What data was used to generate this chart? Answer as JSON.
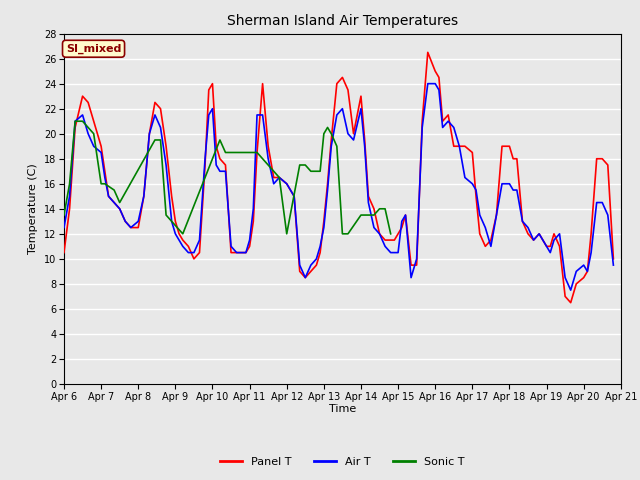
{
  "title": "Sherman Island Air Temperatures",
  "xlabel": "Time",
  "ylabel": "Temperature (C)",
  "annotation_text": "SI_mixed",
  "annotation_color": "#8B0000",
  "annotation_bg": "#FFFACD",
  "xlim": [
    6,
    21
  ],
  "ylim": [
    0,
    28
  ],
  "yticks": [
    0,
    2,
    4,
    6,
    8,
    10,
    12,
    14,
    16,
    18,
    20,
    22,
    24,
    26,
    28
  ],
  "xtick_labels": [
    "Apr 6",
    "Apr 7",
    "Apr 8",
    "Apr 9",
    "Apr 10",
    "Apr 11",
    "Apr 12",
    "Apr 13",
    "Apr 14",
    "Apr 15",
    "Apr 16",
    "Apr 17",
    "Apr 18",
    "Apr 19",
    "Apr 20",
    "Apr 21"
  ],
  "fig_bg_color": "#E8E8E8",
  "plot_bg_color": "#E8E8E8",
  "grid_color": "white",
  "panel_T_color": "red",
  "air_T_color": "blue",
  "sonic_T_color": "green",
  "line_width": 1.2,
  "panel_T_x": [
    6.0,
    6.15,
    6.3,
    6.5,
    6.65,
    6.8,
    7.0,
    7.1,
    7.2,
    7.35,
    7.5,
    7.65,
    7.8,
    8.0,
    8.15,
    8.3,
    8.45,
    8.6,
    8.75,
    8.9,
    9.0,
    9.1,
    9.2,
    9.35,
    9.5,
    9.65,
    9.8,
    9.9,
    10.0,
    10.1,
    10.2,
    10.35,
    10.5,
    10.65,
    10.8,
    10.9,
    11.0,
    11.1,
    11.2,
    11.35,
    11.5,
    11.65,
    11.8,
    12.0,
    12.1,
    12.2,
    12.35,
    12.5,
    12.65,
    12.8,
    12.9,
    13.0,
    13.1,
    13.2,
    13.35,
    13.5,
    13.65,
    13.8,
    14.0,
    14.1,
    14.2,
    14.35,
    14.5,
    14.65,
    14.8,
    14.9,
    15.0,
    15.1,
    15.2,
    15.35,
    15.5,
    15.65,
    15.8,
    16.0,
    16.1,
    16.2,
    16.35,
    16.5,
    16.65,
    16.8,
    17.0,
    17.1,
    17.2,
    17.35,
    17.5,
    17.65,
    17.8,
    18.0,
    18.1,
    18.2,
    18.35,
    18.5,
    18.65,
    18.8,
    19.0,
    19.1,
    19.2,
    19.35,
    19.5,
    19.65,
    19.8,
    20.0,
    20.1,
    20.2,
    20.35,
    20.5,
    20.65,
    20.8
  ],
  "panel_T_y": [
    10.5,
    14.0,
    20.5,
    23.0,
    22.5,
    21.0,
    19.0,
    17.0,
    15.0,
    14.5,
    14.0,
    13.0,
    12.5,
    12.5,
    15.0,
    20.0,
    22.5,
    22.0,
    19.0,
    15.0,
    13.0,
    12.0,
    11.5,
    11.0,
    10.0,
    10.5,
    17.5,
    23.5,
    24.0,
    19.0,
    18.0,
    17.5,
    10.5,
    10.5,
    10.5,
    10.5,
    11.0,
    13.0,
    18.5,
    24.0,
    19.0,
    16.5,
    16.5,
    16.0,
    15.5,
    15.0,
    9.0,
    8.5,
    9.0,
    9.5,
    10.5,
    13.0,
    16.0,
    19.5,
    24.0,
    24.5,
    23.5,
    20.0,
    23.0,
    19.5,
    15.0,
    14.0,
    12.0,
    11.5,
    11.5,
    11.5,
    12.0,
    12.5,
    13.5,
    9.5,
    9.5,
    21.0,
    26.5,
    25.0,
    24.5,
    21.0,
    21.5,
    19.0,
    19.0,
    19.0,
    18.5,
    15.0,
    12.0,
    11.0,
    11.5,
    13.5,
    19.0,
    19.0,
    18.0,
    18.0,
    13.0,
    12.0,
    11.5,
    12.0,
    11.0,
    11.0,
    12.0,
    11.0,
    7.0,
    6.5,
    8.0,
    8.5,
    9.0,
    12.0,
    18.0,
    18.0,
    17.5,
    10.0
  ],
  "air_T_x": [
    6.0,
    6.15,
    6.3,
    6.5,
    6.65,
    6.8,
    7.0,
    7.1,
    7.2,
    7.35,
    7.5,
    7.65,
    7.8,
    8.0,
    8.15,
    8.3,
    8.45,
    8.6,
    8.75,
    8.9,
    9.0,
    9.1,
    9.2,
    9.35,
    9.5,
    9.65,
    9.8,
    9.9,
    10.0,
    10.1,
    10.2,
    10.35,
    10.5,
    10.65,
    10.8,
    10.9,
    11.0,
    11.1,
    11.2,
    11.35,
    11.5,
    11.65,
    11.8,
    12.0,
    12.1,
    12.2,
    12.35,
    12.5,
    12.65,
    12.8,
    12.9,
    13.0,
    13.1,
    13.2,
    13.35,
    13.5,
    13.65,
    13.8,
    14.0,
    14.1,
    14.2,
    14.35,
    14.5,
    14.65,
    14.8,
    14.9,
    15.0,
    15.1,
    15.2,
    15.35,
    15.5,
    15.65,
    15.8,
    16.0,
    16.1,
    16.2,
    16.35,
    16.5,
    16.65,
    16.8,
    17.0,
    17.1,
    17.2,
    17.35,
    17.5,
    17.65,
    17.8,
    18.0,
    18.1,
    18.2,
    18.35,
    18.5,
    18.65,
    18.8,
    19.0,
    19.1,
    19.2,
    19.35,
    19.5,
    19.65,
    19.8,
    20.0,
    20.1,
    20.2,
    20.35,
    20.5,
    20.65,
    20.8
  ],
  "air_T_y": [
    12.5,
    15.0,
    21.0,
    21.5,
    20.0,
    19.0,
    18.5,
    16.5,
    15.0,
    14.5,
    14.0,
    13.0,
    12.5,
    13.0,
    15.0,
    20.0,
    21.5,
    20.5,
    17.5,
    13.0,
    12.0,
    11.5,
    11.0,
    10.5,
    10.5,
    11.5,
    18.0,
    21.5,
    22.0,
    17.5,
    17.0,
    17.0,
    11.0,
    10.5,
    10.5,
    10.5,
    11.5,
    14.0,
    21.5,
    21.5,
    18.0,
    16.0,
    16.5,
    16.0,
    15.5,
    15.0,
    9.5,
    8.5,
    9.5,
    10.0,
    11.0,
    12.5,
    15.5,
    19.0,
    21.5,
    22.0,
    20.0,
    19.5,
    22.0,
    19.0,
    14.5,
    12.5,
    12.0,
    11.0,
    10.5,
    10.5,
    10.5,
    13.0,
    13.5,
    8.5,
    10.0,
    20.5,
    24.0,
    24.0,
    23.5,
    20.5,
    21.0,
    20.5,
    19.0,
    16.5,
    16.0,
    15.5,
    13.5,
    12.5,
    11.0,
    13.5,
    16.0,
    16.0,
    15.5,
    15.5,
    13.0,
    12.5,
    11.5,
    12.0,
    11.0,
    10.5,
    11.5,
    12.0,
    8.5,
    7.5,
    9.0,
    9.5,
    9.0,
    10.5,
    14.5,
    14.5,
    13.5,
    9.5
  ],
  "sonic_T_x": [
    6.0,
    6.15,
    6.3,
    6.5,
    6.65,
    6.8,
    7.0,
    7.1,
    7.35,
    7.5,
    8.45,
    8.6,
    8.75,
    8.9,
    9.2,
    10.2,
    10.35,
    11.2,
    11.35,
    11.5,
    11.65,
    11.8,
    12.0,
    12.35,
    12.5,
    12.65,
    12.8,
    12.9,
    13.0,
    13.1,
    13.2,
    13.35,
    13.5,
    13.65,
    14.0,
    14.1,
    14.2,
    14.35,
    14.5,
    14.65,
    14.8
  ],
  "sonic_T_y": [
    13.5,
    16.0,
    21.0,
    21.0,
    20.5,
    20.0,
    16.0,
    16.0,
    15.5,
    14.5,
    19.5,
    19.5,
    13.5,
    13.0,
    12.0,
    19.5,
    18.5,
    18.5,
    18.0,
    17.5,
    17.0,
    16.5,
    12.0,
    17.5,
    17.5,
    17.0,
    17.0,
    17.0,
    20.0,
    20.5,
    20.0,
    19.0,
    12.0,
    12.0,
    13.5,
    13.5,
    13.5,
    13.5,
    14.0,
    14.0,
    12.0
  ]
}
